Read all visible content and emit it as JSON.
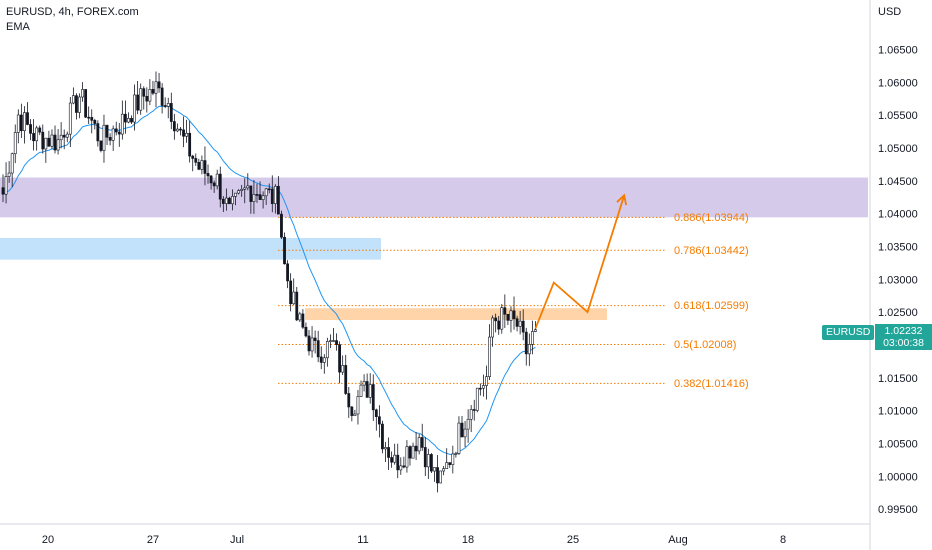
{
  "header": {
    "symbol_line": "EURUSD, 4h, FOREX.com",
    "indicator": "EMA"
  },
  "axis": {
    "currency": "USD",
    "y_ticks": [
      "1.06500",
      "1.06000",
      "1.05500",
      "1.05000",
      "1.04500",
      "1.04000",
      "1.03500",
      "1.03000",
      "1.02500",
      "1.02000",
      "1.01500",
      "1.01000",
      "1.00500",
      "1.00000",
      "0.99500"
    ],
    "x_ticks": [
      "20",
      "27",
      "Jul",
      "11",
      "18",
      "25",
      "Aug",
      "8"
    ]
  },
  "price_tag": {
    "symbol": "EURUSD",
    "price": "1.02232",
    "countdown": "03:00:38"
  },
  "colors": {
    "up": "#26a69a",
    "down": "#ef5350",
    "ema": "#2196f3",
    "fib": "#f57c00",
    "resistance_zone": "#d1c4e9",
    "support_zone": "#bbdefb",
    "fib_zone": "#ffcc99"
  },
  "fib_levels": [
    {
      "label": "0.886(1.03944)",
      "value": 1.03944
    },
    {
      "label": "0.786(1.03442)",
      "value": 1.03442
    },
    {
      "label": "0.618(1.02599)",
      "value": 1.02599
    },
    {
      "label": "0.5(1.02008)",
      "value": 1.02008
    },
    {
      "label": "0.382(1.01416)",
      "value": 1.01416
    }
  ],
  "chart_data": {
    "type": "candlestick",
    "title": "EURUSD, 4h, FOREX.com",
    "indicator": "EMA",
    "ylabel": "USD",
    "ylim": [
      0.9935,
      1.0685
    ],
    "x_ticks": [
      "20",
      "27",
      "Jul",
      "11",
      "18",
      "25",
      "Aug",
      "8"
    ],
    "last_price": 1.02232,
    "close_path": [
      {
        "bar": 0,
        "price": 1.043
      },
      {
        "bar": 5,
        "price": 1.055
      },
      {
        "bar": 10,
        "price": 1.052
      },
      {
        "bar": 18,
        "price": 1.051
      },
      {
        "bar": 25,
        "price": 1.058
      },
      {
        "bar": 32,
        "price": 1.051
      },
      {
        "bar": 39,
        "price": 1.054
      },
      {
        "bar": 46,
        "price": 1.058
      },
      {
        "bar": 50,
        "price": 1.059
      },
      {
        "bar": 54,
        "price": 1.057
      },
      {
        "bar": 58,
        "price": 1.052
      },
      {
        "bar": 64,
        "price": 1.047
      },
      {
        "bar": 70,
        "price": 1.045
      },
      {
        "bar": 74,
        "price": 1.04
      },
      {
        "bar": 80,
        "price": 1.044
      },
      {
        "bar": 86,
        "price": 1.043
      },
      {
        "bar": 90,
        "price": 1.042
      },
      {
        "bar": 92,
        "price": 1.032
      },
      {
        "bar": 96,
        "price": 1.024
      },
      {
        "bar": 102,
        "price": 1.019
      },
      {
        "bar": 108,
        "price": 1.02
      },
      {
        "bar": 114,
        "price": 1.011
      },
      {
        "bar": 120,
        "price": 1.014
      },
      {
        "bar": 124,
        "price": 1.006
      },
      {
        "bar": 128,
        "price": 1.002
      },
      {
        "bar": 132,
        "price": 1.004
      },
      {
        "bar": 136,
        "price": 1.006
      },
      {
        "bar": 140,
        "price": 1.001
      },
      {
        "bar": 143,
        "price": 0.999
      },
      {
        "bar": 147,
        "price": 1.004
      },
      {
        "bar": 151,
        "price": 1.009
      },
      {
        "bar": 155,
        "price": 1.013
      },
      {
        "bar": 158,
        "price": 1.015
      },
      {
        "bar": 160,
        "price": 1.024
      },
      {
        "bar": 164,
        "price": 1.024
      },
      {
        "bar": 168,
        "price": 1.023
      },
      {
        "bar": 171,
        "price": 1.019
      },
      {
        "bar": 174,
        "price": 1.0223
      }
    ],
    "zones": [
      {
        "name": "resistance",
        "from": 1.03944,
        "to": 1.0455
      },
      {
        "name": "support",
        "from": 1.033,
        "to": 1.0363
      },
      {
        "name": "fib-zone",
        "from": 1.0238,
        "to": 1.0256
      }
    ],
    "projection": [
      {
        "bar": 174,
        "price": 1.0225
      },
      {
        "bar": 180,
        "price": 1.0295
      },
      {
        "bar": 191,
        "price": 1.025
      },
      {
        "bar": 203,
        "price": 1.0428
      }
    ]
  }
}
